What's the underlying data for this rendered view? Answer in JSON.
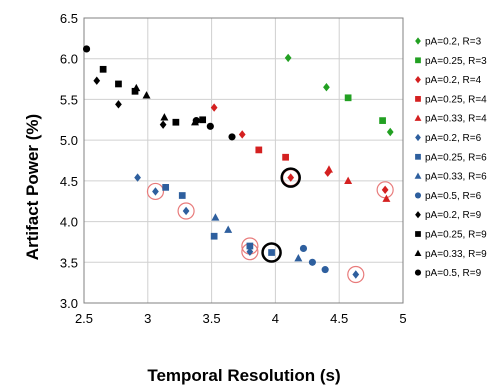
{
  "chart_data": {
    "type": "scatter",
    "xlabel": "Temporal Resolution (s)",
    "ylabel": "Artifact Power (%)",
    "xlim": [
      2.5,
      5
    ],
    "ylim": [
      3.0,
      6.5
    ],
    "x_ticks": [
      "2.5",
      "3",
      "3.5",
      "4",
      "4.5",
      "5"
    ],
    "y_ticks": [
      "3.0",
      "3.5",
      "4.0",
      "4.5",
      "5.0",
      "5.5",
      "6.0",
      "6.5"
    ],
    "grid": "major gridlines",
    "legend_position": "right",
    "colors": {
      "green": "#22a022",
      "red": "#d42020",
      "blue": "#2e5f9e",
      "black": "#000000",
      "grid": "#d0d0d0",
      "highlight_red": "#e87b7b"
    },
    "series": [
      {
        "name": "pA=0.2, R=3",
        "color": "#22a022",
        "marker": "diamond",
        "points": [
          [
            4.1,
            6.01
          ],
          [
            4.4,
            5.65
          ],
          [
            4.9,
            5.1
          ]
        ]
      },
      {
        "name": "pA=0.25, R=3",
        "color": "#22a022",
        "marker": "square",
        "points": [
          [
            4.57,
            5.52
          ],
          [
            4.84,
            5.24
          ]
        ]
      },
      {
        "name": "pA=0.2, R=4",
        "color": "#d42020",
        "marker": "diamond",
        "points": [
          [
            3.52,
            5.4
          ],
          [
            3.74,
            5.07
          ],
          [
            4.12,
            4.54
          ],
          [
            4.41,
            4.6
          ],
          [
            4.86,
            4.39
          ]
        ]
      },
      {
        "name": "pA=0.25, R=4",
        "color": "#d42020",
        "marker": "square",
        "points": [
          [
            3.87,
            4.88
          ],
          [
            4.08,
            4.79
          ]
        ]
      },
      {
        "name": "pA=0.33, R=4",
        "color": "#d42020",
        "marker": "triangle",
        "points": [
          [
            4.42,
            4.64
          ],
          [
            4.57,
            4.5
          ],
          [
            4.87,
            4.28
          ]
        ]
      },
      {
        "name": "pA=0.2, R=6",
        "color": "#2e5f9e",
        "marker": "diamond",
        "points": [
          [
            2.92,
            4.54
          ],
          [
            3.06,
            4.37
          ],
          [
            3.3,
            4.13
          ],
          [
            3.8,
            3.63
          ],
          [
            4.63,
            3.35
          ]
        ]
      },
      {
        "name": "pA=0.25, R=6",
        "color": "#2e5f9e",
        "marker": "square",
        "points": [
          [
            3.14,
            4.42
          ],
          [
            3.27,
            4.32
          ],
          [
            3.52,
            3.82
          ],
          [
            3.8,
            3.7
          ],
          [
            3.97,
            3.62
          ]
        ]
      },
      {
        "name": "pA=0.33, R=6",
        "color": "#2e5f9e",
        "marker": "triangle",
        "points": [
          [
            3.53,
            4.05
          ],
          [
            3.63,
            3.9
          ],
          [
            4.18,
            3.55
          ]
        ]
      },
      {
        "name": "pA=0.5, R=6",
        "color": "#2e5f9e",
        "marker": "circle",
        "points": [
          [
            4.22,
            3.67
          ],
          [
            4.29,
            3.5
          ],
          [
            4.39,
            3.41
          ]
        ]
      },
      {
        "name": "pA=0.2, R=9",
        "color": "#000000",
        "marker": "diamond",
        "points": [
          [
            2.6,
            5.73
          ],
          [
            2.77,
            5.44
          ],
          [
            3.12,
            5.19
          ]
        ]
      },
      {
        "name": "pA=0.25, R=9",
        "color": "#000000",
        "marker": "square",
        "points": [
          [
            2.65,
            5.87
          ],
          [
            2.77,
            5.69
          ],
          [
            2.9,
            5.6
          ],
          [
            3.22,
            5.22
          ],
          [
            3.43,
            5.25
          ]
        ]
      },
      {
        "name": "pA=0.33, R=9",
        "color": "#000000",
        "marker": "triangle",
        "points": [
          [
            2.91,
            5.64
          ],
          [
            2.99,
            5.55
          ],
          [
            3.13,
            5.28
          ],
          [
            3.37,
            5.22
          ]
        ]
      },
      {
        "name": "pA=0.5, R=9",
        "color": "#000000",
        "marker": "circle",
        "points": [
          [
            2.52,
            6.12
          ],
          [
            3.38,
            5.24
          ],
          [
            3.49,
            5.17
          ],
          [
            3.66,
            5.04
          ]
        ]
      }
    ],
    "highlights": {
      "red_circles": [
        [
          3.06,
          4.37
        ],
        [
          3.3,
          4.13
        ],
        [
          3.8,
          3.63
        ],
        [
          3.8,
          3.7
        ],
        [
          4.63,
          3.35
        ],
        [
          4.86,
          4.39
        ],
        [
          4.12,
          4.54
        ]
      ],
      "black_circles": [
        [
          4.12,
          4.54
        ],
        [
          3.97,
          3.62
        ]
      ]
    }
  }
}
